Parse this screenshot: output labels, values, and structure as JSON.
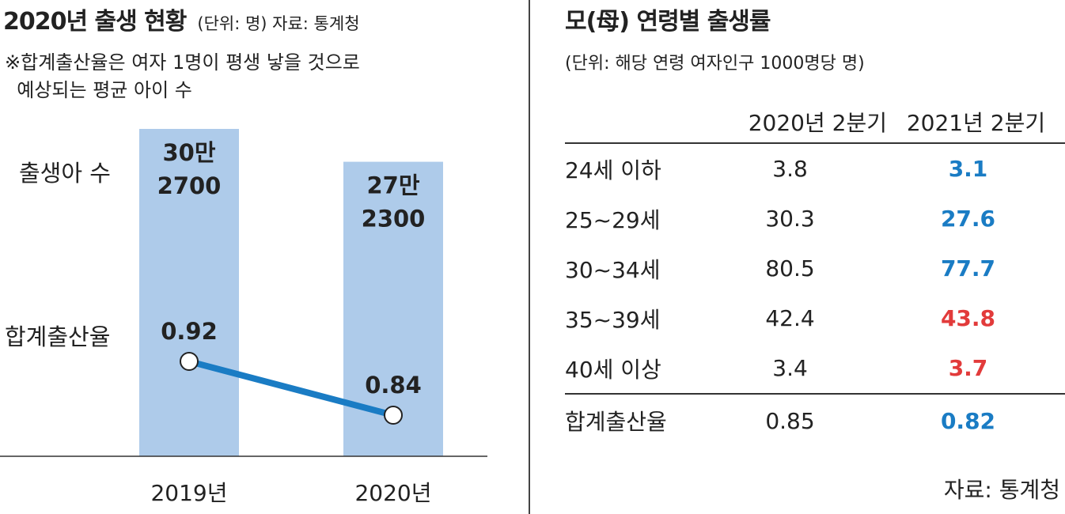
{
  "left_panel": {
    "title": "2020년 출생 현황",
    "unit": "(단위: 명)  자료: 통계청",
    "note": "※합계출산율은 여자 1명이 평생 낳을 것으로\n  예상되는 평균 아이 수",
    "row_births_label": "출생아 수",
    "row_tfr_label": "합계출산율"
  },
  "chart_data": [
    {
      "type": "bar",
      "categories": [
        "2019년",
        "2020년"
      ],
      "series": [
        {
          "name": "출생아 수",
          "values": [
            302700,
            272300
          ]
        }
      ],
      "bar_labels": [
        "30만\n2700",
        "27만\n2300"
      ],
      "bar_color": "#aecbea",
      "line": {
        "name": "합계출산율",
        "values": [
          0.92,
          0.84
        ],
        "labels": [
          "0.92",
          "0.84"
        ],
        "color": "#1a7cc4"
      }
    },
    {
      "type": "table",
      "title": "모(母) 연령별 출생률",
      "unit": "(단위: 해당 연령 여자인구 1000명당 명)",
      "columns": [
        "",
        "2020년 2분기",
        "2021년 2분기"
      ],
      "rows": [
        {
          "label": "24세 이하",
          "v2020": "3.8",
          "v2021": "3.1",
          "trend": "down"
        },
        {
          "label": "25~29세",
          "v2020": "30.3",
          "v2021": "27.6",
          "trend": "down"
        },
        {
          "label": "30~34세",
          "v2020": "80.5",
          "v2021": "77.7",
          "trend": "down"
        },
        {
          "label": "35~39세",
          "v2020": "42.4",
          "v2021": "43.8",
          "trend": "up"
        },
        {
          "label": "40세 이상",
          "v2020": "3.4",
          "v2021": "3.7",
          "trend": "up"
        },
        {
          "label": "합계출산율",
          "v2020": "0.85",
          "v2021": "0.82",
          "trend": "down"
        }
      ],
      "colors": {
        "down": "#1a7cc4",
        "up": "#e23b3b"
      }
    }
  ],
  "source": "자료: 통계청"
}
